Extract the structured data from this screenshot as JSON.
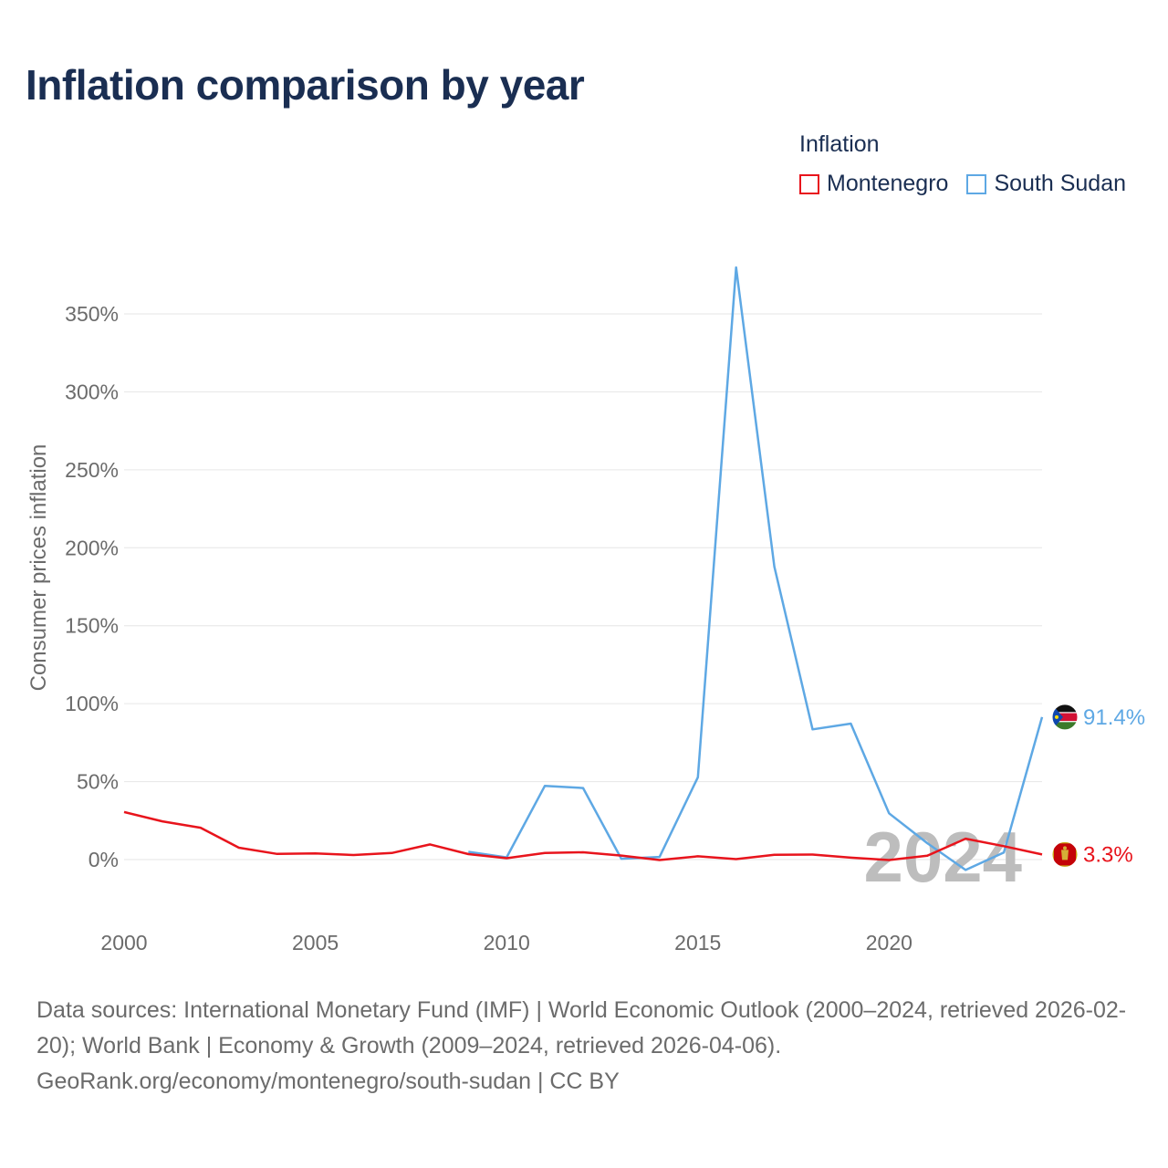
{
  "title": "Inflation comparison by year",
  "legend": {
    "title": "Inflation",
    "items": [
      {
        "label": "Montenegro",
        "color": "#e8141c"
      },
      {
        "label": "South Sudan",
        "color": "#5ea8e4"
      }
    ]
  },
  "year_watermark": "2024",
  "footer": {
    "sources": "Data sources: International Monetary Fund (IMF) | World Economic Outlook (2000–2024, retrieved 2026-02-20); World Bank | Economy & Growth (2009–2024, retrieved 2026-04-06).",
    "credit": "GeoRank.org/economy/montenegro/south-sudan | CC BY"
  },
  "chart_data": {
    "type": "line",
    "title": "Inflation comparison by year",
    "xlabel": "",
    "ylabel": "Consumer prices inflation",
    "xlim": [
      2000,
      2024
    ],
    "ylim": [
      -40,
      395
    ],
    "x_ticks": [
      2000,
      2005,
      2010,
      2015,
      2020
    ],
    "y_ticks": [
      0,
      50,
      100,
      150,
      200,
      250,
      300,
      350
    ],
    "y_tick_format": "percent",
    "grid": true,
    "legend_position": "top-right",
    "series": [
      {
        "name": "Montenegro",
        "color": "#e8141c",
        "x": [
          2000,
          2001,
          2002,
          2003,
          2004,
          2005,
          2006,
          2007,
          2008,
          2009,
          2010,
          2011,
          2012,
          2013,
          2014,
          2015,
          2016,
          2017,
          2018,
          2019,
          2020,
          2021,
          2022,
          2023,
          2024
        ],
        "values": [
          30.5,
          24.5,
          20.4,
          7.6,
          3.6,
          3.9,
          2.9,
          4.2,
          9.7,
          3.5,
          0.9,
          4.2,
          4.7,
          2.6,
          -0.3,
          2.1,
          0.3,
          3.1,
          3.2,
          1.2,
          -0.3,
          2.5,
          13.4,
          8.6,
          3.3
        ],
        "end_label": "3.3%"
      },
      {
        "name": "South Sudan",
        "color": "#5ea8e4",
        "x": [
          2009,
          2010,
          2011,
          2012,
          2013,
          2014,
          2015,
          2016,
          2017,
          2018,
          2019,
          2020,
          2021,
          2022,
          2023,
          2024
        ],
        "values": [
          5.0,
          1.4,
          47.3,
          45.9,
          0.5,
          1.7,
          52.8,
          379.8,
          187.9,
          83.5,
          87.2,
          29.7,
          10.5,
          -6.7,
          4.5,
          91.4
        ],
        "end_label": "91.4%"
      }
    ]
  }
}
